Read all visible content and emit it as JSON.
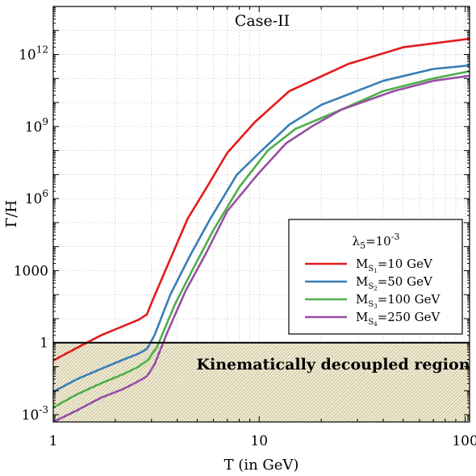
{
  "chart_data": {
    "type": "line",
    "title": "Case-II",
    "xlabel": "T (in GeV)",
    "ylabel": "Γ/H",
    "xscale": "log",
    "yscale": "log",
    "xlim": [
      1,
      105
    ],
    "ylim": [
      0.0005,
      100000000000000.0
    ],
    "x_ticks": [
      {
        "value": 1,
        "label": "1"
      },
      {
        "value": 10,
        "label": "10"
      },
      {
        "value": 100,
        "label": "100"
      }
    ],
    "y_ticks": [
      {
        "value": 0.001,
        "base": "10",
        "exp": "-3"
      },
      {
        "value": 1,
        "base": "1",
        "exp": ""
      },
      {
        "value": 1000,
        "base": "1000",
        "exp": ""
      },
      {
        "value": 1000000,
        "base": "10",
        "exp": "6"
      },
      {
        "value": 1000000000,
        "base": "10",
        "exp": "9"
      },
      {
        "value": 1000000000000,
        "base": "10",
        "exp": "12"
      }
    ],
    "grid": true,
    "legend_position": "right-middle",
    "legend_title": {
      "base": "λ",
      "sub": "5",
      "mid": "=10",
      "sup": "-3"
    },
    "reference_line": {
      "y": 1
    },
    "shaded_region": {
      "y_from": 0.0005,
      "y_to": 1,
      "label": "Kinematically decoupled region"
    },
    "series": [
      {
        "name": "M_S1=10 GeV",
        "label_main": "M",
        "label_sub": "S",
        "label_subsub": "1",
        "label_rest": "=10 GeV",
        "color": "#e41a1c",
        "x": [
          1,
          1.3,
          1.7,
          2.2,
          2.6,
          2.85,
          3.0,
          3.5,
          4.5,
          5.5,
          7.0,
          9.5,
          14,
          27,
          50,
          105
        ],
        "y": [
          0.18,
          0.6,
          2.0,
          5.0,
          9.0,
          15,
          45,
          1000,
          150000,
          2500000,
          80000000,
          1500000000,
          30000000000,
          400000000000,
          2000000000000,
          4500000000000
        ]
      },
      {
        "name": "M_S2=50 GeV",
        "label_main": "M",
        "label_sub": "S",
        "label_subsub": "2",
        "label_rest": "=50 GeV",
        "color": "#377eb8",
        "x": [
          1,
          1.3,
          1.7,
          2.2,
          2.6,
          2.85,
          3.1,
          3.7,
          4.6,
          5.8,
          7.8,
          10,
          14,
          20,
          40,
          70,
          105
        ],
        "y": [
          0.009,
          0.03,
          0.08,
          0.2,
          0.35,
          0.55,
          2.0,
          100,
          4000,
          150000,
          10000000,
          80000000,
          1200000000,
          8000000000,
          80000000000,
          250000000000,
          350000000000
        ]
      },
      {
        "name": "M_S3=100 GeV",
        "label_main": "M",
        "label_sub": "S",
        "label_subsub": "3",
        "label_rest": "=100 GeV",
        "color": "#4daf4a",
        "x": [
          1,
          1.3,
          1.7,
          2.2,
          2.6,
          2.9,
          3.2,
          3.9,
          4.8,
          6.0,
          8.0,
          11,
          15,
          25,
          40,
          70,
          105
        ],
        "y": [
          0.002,
          0.007,
          0.02,
          0.05,
          0.1,
          0.2,
          0.7,
          40,
          1300,
          50000,
          3000000,
          100000000,
          800000000,
          5000000000,
          30000000000,
          100000000000,
          200000000000
        ]
      },
      {
        "name": "M_S4=250 GeV",
        "label_main": "M",
        "label_sub": "S",
        "label_subsub": "4",
        "label_rest": "=250 GeV",
        "color": "#984ea3",
        "x": [
          1,
          1.3,
          1.7,
          2.2,
          2.6,
          2.85,
          3.1,
          3.6,
          4.4,
          5.5,
          7.0,
          9.8,
          13.5,
          18,
          25,
          45,
          70,
          105
        ],
        "y": [
          0.0005,
          0.0015,
          0.005,
          0.012,
          0.025,
          0.04,
          0.12,
          3.0,
          150,
          5000,
          300000,
          10000000,
          200000000,
          1000000000,
          5000000000,
          30000000000,
          80000000000,
          130000000000
        ]
      }
    ]
  }
}
